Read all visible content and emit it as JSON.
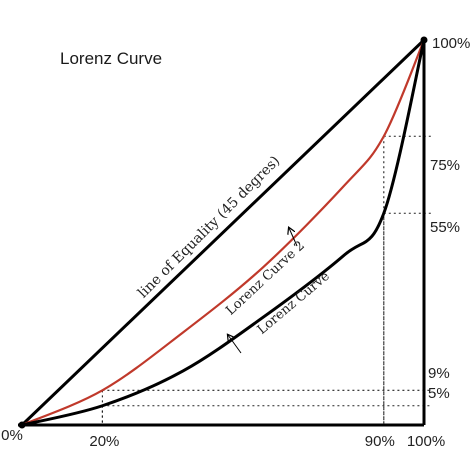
{
  "chart_data": {
    "type": "line",
    "title": "Lorenz Curve",
    "x_ticks": [
      "0%",
      "20%",
      "90%",
      "100%"
    ],
    "y_ticks": [
      "0%",
      "5%",
      "9%",
      "55%",
      "75%",
      "100%"
    ],
    "xlim": [
      0,
      100
    ],
    "ylim": [
      0,
      100
    ],
    "series": [
      {
        "name": "line of Equality (45 degres)",
        "color": "#000000",
        "style": "straight",
        "x": [
          0,
          100
        ],
        "y": [
          0,
          100
        ]
      },
      {
        "name": "Lorenz Curve 2",
        "color": "#c0392b",
        "x": [
          0,
          20,
          40,
          60,
          80,
          90,
          100
        ],
        "y": [
          0,
          9,
          24,
          41,
          62,
          75,
          100
        ]
      },
      {
        "name": "Lorenz Curve",
        "color": "#000000",
        "x": [
          0,
          20,
          40,
          60,
          80,
          90,
          100
        ],
        "y": [
          0,
          5,
          14,
          28,
          44,
          55,
          100
        ]
      }
    ],
    "guide_lines": [
      {
        "x": 20,
        "y": 9
      },
      {
        "x": 20,
        "y": 5
      },
      {
        "x": 90,
        "y": 75
      },
      {
        "x": 90,
        "y": 55
      }
    ]
  }
}
